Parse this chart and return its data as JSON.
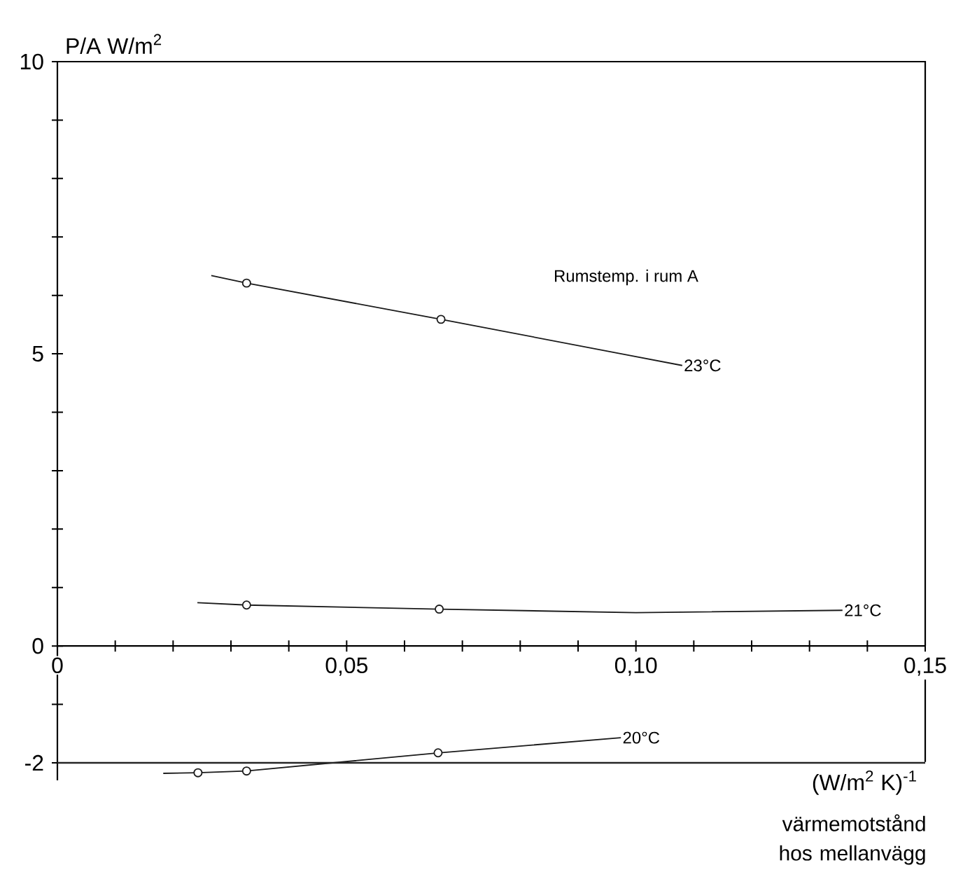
{
  "chart_data": {
    "type": "line",
    "xlabel": "(W/m$^{2}$ K)$^{-1}$",
    "ylabel": "P/A  W/m$^{2}$",
    "annotations": [
      "Rumstemp. i rum A",
      "värmemotstånd hos mellanvägg"
    ],
    "xlim": [
      0,
      0.15
    ],
    "ylim": [
      -2.3,
      10
    ],
    "xticks": [
      0,
      {
        "value": 0.01,
        "label": null
      },
      {
        "value": 0.02,
        "label": null
      },
      {
        "value": 0.03,
        "label": null
      },
      {
        "value": 0.04,
        "label": null
      },
      {
        "value": 0.05,
        "label": "0,05"
      },
      {
        "value": 0.06,
        "label": null
      },
      {
        "value": 0.07,
        "label": null
      },
      {
        "value": 0.08,
        "label": null
      },
      {
        "value": 0.09,
        "label": null
      },
      {
        "value": 0.1,
        "label": "0,10"
      },
      {
        "value": 0.11,
        "label": null
      },
      {
        "value": 0.12,
        "label": null
      },
      {
        "value": 0.13,
        "label": null
      },
      {
        "value": 0.14,
        "label": null
      },
      {
        "value": 0.15,
        "label": "0,15"
      }
    ],
    "yticks": [
      -2,
      {
        "value": -1,
        "label": null
      },
      0,
      {
        "value": 1,
        "label": null
      },
      {
        "value": 2,
        "label": null
      },
      {
        "value": 3,
        "label": null
      },
      {
        "value": 4,
        "label": null
      },
      5,
      {
        "value": 6,
        "label": null
      },
      {
        "value": 7,
        "label": null
      },
      {
        "value": 8,
        "label": null
      },
      {
        "value": 9,
        "label": null
      },
      10
    ],
    "ref_lines": [
      {
        "axis": "y",
        "value": -2,
        "color": "#262626"
      }
    ],
    "series": [
      {
        "name": "23°C",
        "color": "#1a1a1a",
        "marker": "none",
        "x": [
          0.0266,
          0.0327,
          0.0663,
          0.108
        ],
        "values": [
          6.34,
          6.21,
          5.59,
          4.8
        ]
      },
      {
        "type": "scatter",
        "color": "#1a1a1a",
        "marker": "circle",
        "x": [
          0.0327,
          0.0663
        ],
        "values": [
          6.21,
          5.59
        ]
      },
      {
        "name": "21°C",
        "color": "#1a1a1a",
        "marker": "none",
        "x": [
          0.0242,
          0.0327,
          0.066,
          0.1,
          0.1357
        ],
        "values": [
          0.74,
          0.7,
          0.63,
          0.57,
          0.61
        ]
      },
      {
        "type": "scatter",
        "color": "#1a1a1a",
        "marker": "circle",
        "x": [
          0.0327,
          0.066
        ],
        "values": [
          0.7,
          0.63
        ]
      },
      {
        "name": "20°C",
        "color": "#1a1a1a",
        "marker": "none",
        "x": [
          0.0183,
          0.0243,
          0.0327,
          0.0658,
          0.0974
        ],
        "values": [
          -2.18,
          -2.17,
          -2.14,
          -1.83,
          -1.57
        ]
      },
      {
        "type": "scatter",
        "color": "#1a1a1a",
        "marker": "circle",
        "x": [
          0.0243,
          0.0327,
          0.0658
        ],
        "values": [
          -2.17,
          -2.14,
          -1.83
        ]
      }
    ]
  }
}
